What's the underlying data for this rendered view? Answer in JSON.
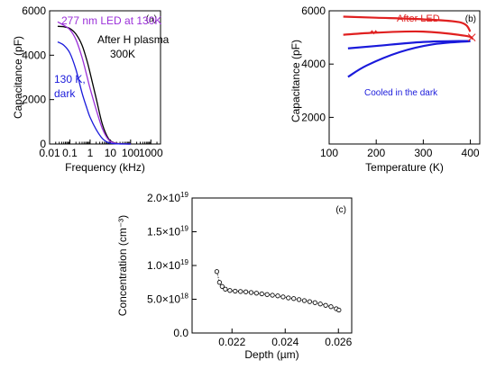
{
  "chart_data": [
    {
      "type": "line",
      "panel_label": "(a)",
      "xlabel": "Frequency (kHz)",
      "ylabel": "Capacitance (pF)",
      "xscale": "log",
      "xlim": [
        0.01,
        3000
      ],
      "ylim": [
        0,
        6000
      ],
      "xticks": [
        0.01,
        0.1,
        1,
        10,
        100,
        1000
      ],
      "xtick_labels": [
        "0.01",
        "0.1",
        "1",
        "10",
        "100",
        "1000"
      ],
      "yticks": [
        0,
        2000,
        4000,
        6000
      ],
      "ytick_labels": [
        "0",
        "2000",
        "4000",
        "6000"
      ],
      "grid": false,
      "annotations": [
        {
          "text": "277 nm LED at 130K",
          "color": "#9B30D9"
        },
        {
          "text": "After H plasma",
          "color": "#000000"
        },
        {
          "text": "300K",
          "color": "#000000"
        },
        {
          "text": "130 K,",
          "color": "#1a1adb"
        },
        {
          "text": "dark",
          "color": "#1a1adb"
        }
      ],
      "series": [
        {
          "color": "#000000",
          "points": [
            [
              0.025,
              5300
            ],
            [
              0.05,
              5280
            ],
            [
              0.1,
              5200
            ],
            [
              0.2,
              4950
            ],
            [
              0.4,
              4450
            ],
            [
              0.7,
              3750
            ],
            [
              1,
              3200
            ],
            [
              2,
              2050
            ],
            [
              4,
              900
            ],
            [
              8,
              250
            ],
            [
              15,
              60
            ],
            [
              30,
              15
            ],
            [
              100,
              0
            ]
          ]
        },
        {
          "color": "#9B30D9",
          "points": [
            [
              0.025,
              5500
            ],
            [
              0.05,
              5350
            ],
            [
              0.1,
              5150
            ],
            [
              0.2,
              4700
            ],
            [
              0.4,
              3900
            ],
            [
              0.7,
              3050
            ],
            [
              1,
              2500
            ],
            [
              2,
              1550
            ],
            [
              4,
              700
            ],
            [
              8,
              200
            ],
            [
              15,
              50
            ],
            [
              30,
              10
            ],
            [
              100,
              0
            ]
          ]
        },
        {
          "color": "#1a1adb",
          "points": [
            [
              0.025,
              4600
            ],
            [
              0.05,
              4450
            ],
            [
              0.1,
              4100
            ],
            [
              0.2,
              3350
            ],
            [
              0.4,
              2300
            ],
            [
              0.7,
              1600
            ],
            [
              1,
              1200
            ],
            [
              2,
              650
            ],
            [
              4,
              250
            ],
            [
              8,
              60
            ],
            [
              15,
              15
            ],
            [
              30,
              3
            ],
            [
              100,
              0
            ]
          ]
        }
      ]
    },
    {
      "type": "line",
      "panel_label": "(b)",
      "xlabel": "Temperature (K)",
      "ylabel": "Capacitance (pF)",
      "xlim": [
        100,
        420
      ],
      "ylim": [
        1000,
        6000
      ],
      "xticks": [
        100,
        200,
        300,
        400
      ],
      "xtick_labels": [
        "100",
        "200",
        "300",
        "400"
      ],
      "yticks": [
        2000,
        4000,
        6000
      ],
      "ytick_labels": [
        "2000",
        "4000",
        "6000"
      ],
      "grid": false,
      "annotations": [
        {
          "text": "After LED",
          "color": "#e02020"
        },
        {
          "text": "Cooled in the dark",
          "color": "#1a1adb"
        }
      ],
      "series": [
        {
          "color": "#e02020",
          "points": [
            [
              130,
              5780
            ],
            [
              200,
              5740
            ],
            [
              300,
              5680
            ],
            [
              380,
              5560
            ],
            [
              400,
              5220
            ]
          ]
        },
        {
          "color": "#e02020",
          "points": [
            [
              130,
              5100
            ],
            [
              200,
              5180
            ],
            [
              300,
              5220
            ],
            [
              390,
              5060
            ],
            [
              405,
              4940
            ]
          ]
        },
        {
          "color": "#1a1adb",
          "points": [
            [
              140,
              4590
            ],
            [
              200,
              4680
            ],
            [
              300,
              4830
            ],
            [
              400,
              4870
            ]
          ]
        },
        {
          "color": "#1a1adb",
          "points": [
            [
              140,
              3520
            ],
            [
              180,
              3950
            ],
            [
              250,
              4450
            ],
            [
              320,
              4740
            ],
            [
              400,
              4860
            ]
          ]
        }
      ]
    },
    {
      "type": "scatter",
      "panel_label": "(c)",
      "xlabel": "Depth (µm)",
      "ylabel": "Concentration (cm⁻³)",
      "xlim": [
        0.0205,
        0.0265
      ],
      "ylim": [
        0,
        2e+19
      ],
      "xticks": [
        0.022,
        0.024,
        0.026
      ],
      "xtick_labels": [
        "0.022",
        "0.024",
        "0.026"
      ],
      "yticks": [
        0,
        5e+18,
        1e+19,
        1.5e+19,
        2e+19
      ],
      "ytick_labels": [
        {
          "mantissa": "0.0",
          "exp": ""
        },
        {
          "mantissa": "5.0×10",
          "exp": "18"
        },
        {
          "mantissa": "1.0×10",
          "exp": "19"
        },
        {
          "mantissa": "1.5×10",
          "exp": "19"
        },
        {
          "mantissa": "2.0×10",
          "exp": "19"
        }
      ],
      "grid": false,
      "series": [
        {
          "color": "#000000",
          "x": [
            0.02143,
            0.02153,
            0.02163,
            0.02175,
            0.02192,
            0.02212,
            0.02232,
            0.02252,
            0.02272,
            0.02292,
            0.02312,
            0.02332,
            0.02352,
            0.02372,
            0.02392,
            0.02412,
            0.02432,
            0.02452,
            0.02472,
            0.02492,
            0.02512,
            0.02532,
            0.02552,
            0.02572,
            0.02592,
            0.02602
          ],
          "y": [
            9.1e+18,
            7.5e+18,
            6.9e+18,
            6.5e+18,
            6.3e+18,
            6.2e+18,
            6.15e+18,
            6.1e+18,
            6e+18,
            5.9e+18,
            5.8e+18,
            5.7e+18,
            5.6e+18,
            5.5e+18,
            5.35e+18,
            5.2e+18,
            5.1e+18,
            4.95e+18,
            4.8e+18,
            4.65e+18,
            4.5e+18,
            4.3e+18,
            4.1e+18,
            3.9e+18,
            3.6e+18,
            3.4e+18
          ]
        }
      ]
    }
  ]
}
